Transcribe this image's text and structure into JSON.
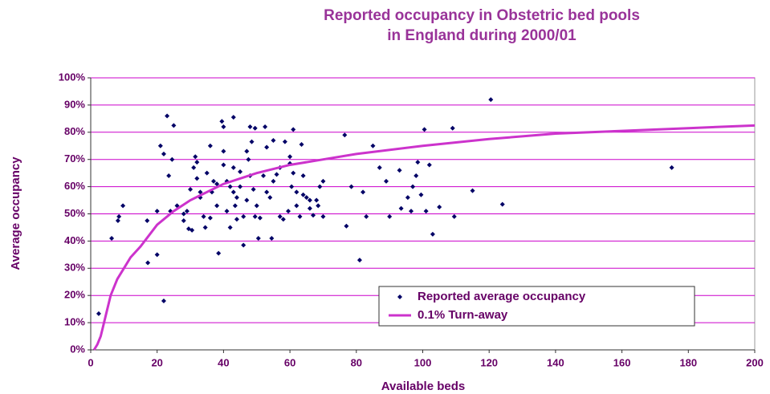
{
  "chart_data": {
    "type": "scatter",
    "title": [
      "Reported occupancy in Obstetric bed pools",
      "in England during 2000/01"
    ],
    "x_label": "Available beds",
    "y_label": "Average occupancy",
    "xlim": [
      0,
      200
    ],
    "xticks": [
      0,
      20,
      40,
      60,
      80,
      100,
      120,
      140,
      160,
      180,
      200
    ],
    "ylim": [
      0,
      100
    ],
    "yticks": [
      {
        "value": 0,
        "label": "0%"
      },
      {
        "value": 10,
        "label": "10%"
      },
      {
        "value": 20,
        "label": "20%"
      },
      {
        "value": 30,
        "label": "30%"
      },
      {
        "value": 40,
        "label": "40%"
      },
      {
        "value": 50,
        "label": "50%"
      },
      {
        "value": 60,
        "label": "60%"
      },
      {
        "value": 70,
        "label": "70%"
      },
      {
        "value": 80,
        "label": "80%"
      },
      {
        "value": 90,
        "label": "90%"
      },
      {
        "value": 100,
        "label": "100%"
      }
    ],
    "grid": true,
    "grid_color": "#cc00cc",
    "legend": "lower right",
    "series": [
      {
        "name": "Reported average occupancy",
        "type": "scatter",
        "color": "#000066",
        "x": [
          2.4,
          6.3,
          8.2,
          8.5,
          9.7,
          17,
          17.2,
          20,
          20,
          21,
          22,
          22,
          23,
          25,
          23.5,
          24,
          24.5,
          28,
          29,
          29.5,
          30.5,
          30,
          31.5,
          32,
          31,
          32,
          33,
          34,
          34.5,
          36,
          36,
          36.5,
          37,
          38,
          38.5,
          39.5,
          40,
          40,
          40,
          41,
          41,
          42,
          43,
          43,
          43.5,
          44,
          45,
          45,
          46,
          47,
          48,
          49.5,
          48.5,
          47.5,
          48,
          49,
          49.5,
          50.5,
          51,
          52.5,
          53,
          54,
          54.5,
          55,
          56,
          57,
          58.5,
          59.5,
          60,
          60.5,
          61,
          62,
          63,
          63.5,
          64,
          65,
          66,
          67,
          68.5,
          69,
          70,
          76.5,
          77,
          78.5,
          81,
          82,
          83,
          85,
          87,
          89,
          90,
          93,
          93.5,
          95.5,
          96.5,
          97,
          98,
          98.5,
          99.5,
          100.5,
          101,
          102,
          103,
          105,
          109,
          109.5,
          115,
          120.5,
          124,
          175,
          42,
          44,
          46,
          50,
          52,
          55,
          57,
          58,
          61,
          62,
          64,
          66,
          68,
          70,
          38,
          35,
          33,
          28,
          26,
          47,
          43,
          53,
          60
        ],
        "values": [
          13.3,
          41,
          47.5,
          49,
          53,
          47.5,
          32,
          35,
          51,
          75,
          72,
          18,
          86,
          82.5,
          64,
          51,
          70,
          47.5,
          51,
          44.5,
          44,
          59,
          71,
          69,
          67,
          63,
          56,
          49,
          45,
          75,
          48.5,
          58,
          62,
          61,
          35.5,
          84,
          82,
          73,
          68,
          62,
          51,
          45,
          85.5,
          58,
          53,
          48,
          65.5,
          60,
          38.5,
          55,
          82,
          81.5,
          76.5,
          70,
          64,
          59,
          49,
          41,
          48.5,
          82,
          74.5,
          56,
          41,
          77,
          64.5,
          49,
          76.5,
          51,
          68.5,
          60,
          81,
          58,
          49,
          75.5,
          64,
          56,
          55,
          49.5,
          53,
          60,
          49,
          79,
          45.5,
          60,
          33,
          58,
          49,
          75,
          67,
          62,
          49,
          66,
          52,
          56,
          51,
          60,
          64,
          69,
          57,
          81,
          51,
          68,
          42.5,
          52.5,
          81.5,
          49,
          58.5,
          92,
          53.5,
          67,
          60,
          56,
          49,
          53,
          64,
          62,
          67,
          48,
          65,
          53,
          57,
          52,
          55,
          62,
          53,
          65,
          58,
          50,
          53,
          73,
          67,
          58,
          71
        ]
      },
      {
        "name": "0.1% Turn-away",
        "type": "line",
        "color": "#cc33cc",
        "x": [
          1,
          2,
          3,
          4,
          5,
          6,
          8,
          10,
          12,
          15,
          20,
          25,
          30,
          40,
          50,
          60,
          70,
          80,
          100,
          120,
          140,
          160,
          180,
          200
        ],
        "values": [
          0,
          2,
          5,
          10,
          15,
          20,
          26,
          30,
          34,
          38,
          46,
          51,
          55,
          61,
          65,
          68,
          70,
          72,
          75,
          77.5,
          79.5,
          80.5,
          81.5,
          82.5
        ]
      }
    ]
  }
}
